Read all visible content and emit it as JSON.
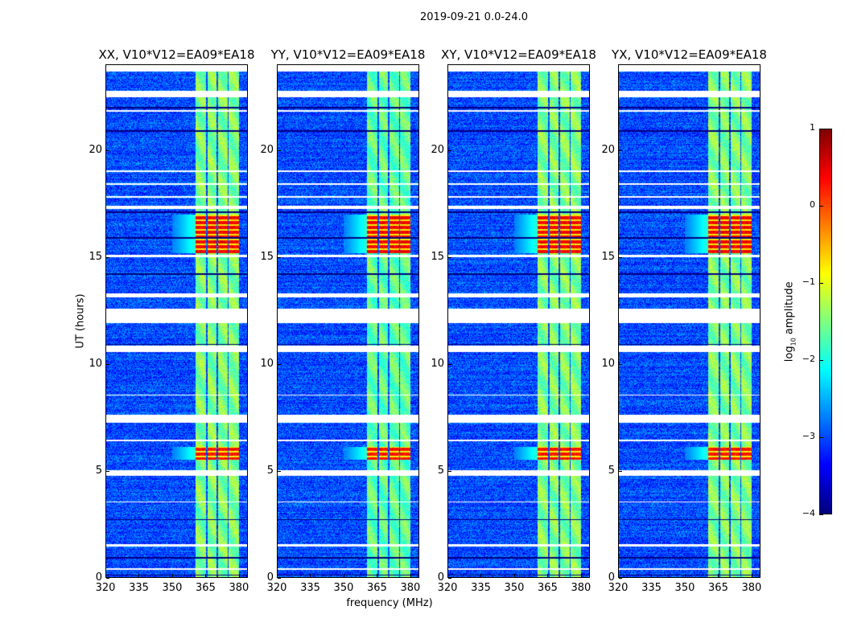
{
  "chart_data": {
    "type": "heatmap",
    "title": "2019-09-21 0.0-24.0",
    "xlabel": "frequency (MHz)",
    "ylabel": "UT (hours)",
    "xlim": [
      320,
      384
    ],
    "ylim": [
      0,
      24
    ],
    "xticks": [
      320,
      335,
      350,
      365,
      380
    ],
    "yticks": [
      0,
      5,
      10,
      15,
      20
    ],
    "colorbar": {
      "label_prefix": "log",
      "label_sub": "10",
      "label_suffix": " amplitude",
      "range": [
        -4,
        1
      ],
      "ticks": [
        1,
        0,
        -1,
        -2,
        -3,
        -4
      ],
      "tick_labels": [
        "1",
        "0",
        "−1",
        "−2",
        "−3",
        "−4"
      ],
      "colormap": "jet"
    },
    "data_time_range": [
      0,
      23.7
    ],
    "background_level": -3.0,
    "rfi_band": {
      "freq_range": [
        360.7,
        380.4
      ],
      "subband_edges": [
        360.7,
        365.6,
        370.4,
        375.4,
        380.4
      ],
      "level": -1.5
    },
    "bright_intervals": [
      {
        "t": [
          15.2,
          17.0
        ],
        "level": 0.4
      },
      {
        "t": [
          5.5,
          6.1
        ],
        "level": 0.3
      }
    ],
    "flagged_intervals": [
      [
        0.35,
        0.4
      ],
      [
        1.45,
        1.55
      ],
      [
        3.5,
        3.55
      ],
      [
        4.75,
        5.0
      ],
      [
        6.35,
        6.45
      ],
      [
        7.25,
        7.6
      ],
      [
        8.5,
        8.55
      ],
      [
        10.55,
        10.85
      ],
      [
        11.9,
        12.6
      ],
      [
        13.1,
        13.3
      ],
      [
        15.0,
        15.1
      ],
      [
        17.25,
        17.4
      ],
      [
        17.8,
        17.85
      ],
      [
        18.4,
        18.45
      ],
      [
        19.0,
        19.05
      ],
      [
        21.8,
        21.9
      ],
      [
        22.5,
        22.8
      ]
    ],
    "dark_lines": [
      0.1,
      0.9,
      2.7,
      10.9,
      12.3,
      14.2,
      15.9,
      17.1,
      20.9,
      22.0
    ],
    "panels": [
      {
        "title": "XX, V10*V12=EA09*EA18",
        "band_scale": 1.0
      },
      {
        "title": "YY, V10*V12=EA09*EA18",
        "band_scale": 1.1
      },
      {
        "title": "XY, V10*V12=EA09*EA18",
        "band_scale": 1.0
      },
      {
        "title": "YX, V10*V12=EA09*EA18",
        "band_scale": 1.0
      }
    ]
  }
}
